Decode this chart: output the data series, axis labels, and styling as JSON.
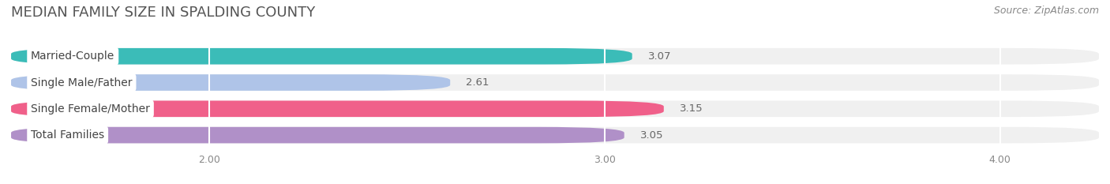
{
  "title": "MEDIAN FAMILY SIZE IN SPALDING COUNTY",
  "source": "Source: ZipAtlas.com",
  "categories": [
    "Married-Couple",
    "Single Male/Father",
    "Single Female/Mother",
    "Total Families"
  ],
  "values": [
    3.07,
    2.61,
    3.15,
    3.05
  ],
  "bar_colors": [
    "#3bbcb8",
    "#afc4e8",
    "#f0608a",
    "#b090c8"
  ],
  "background_color": "#ffffff",
  "bar_bg_color": "#f0f0f0",
  "xlim_min": 1.5,
  "xlim_max": 4.25,
  "xmin": 1.5,
  "xticks": [
    2.0,
    3.0,
    4.0
  ],
  "xtick_labels": [
    "2.00",
    "3.00",
    "4.00"
  ],
  "label_fontsize": 10,
  "value_fontsize": 9.5,
  "title_fontsize": 13,
  "source_fontsize": 9,
  "bar_height": 0.62,
  "bar_gap": 0.38
}
